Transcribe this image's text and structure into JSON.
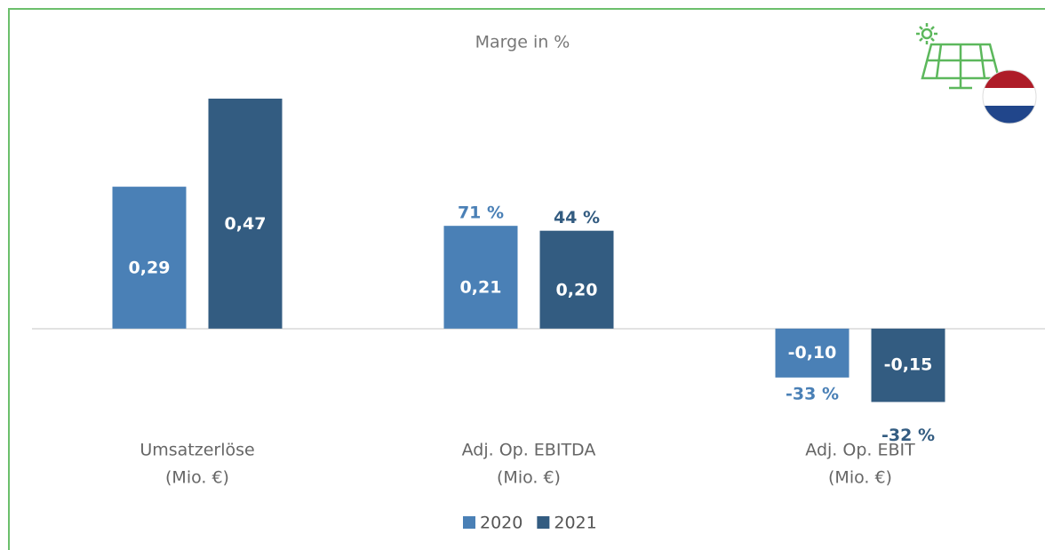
{
  "chart_data": {
    "type": "bar",
    "title": "Marge in %",
    "categories": [
      [
        "Umsatzerlöse",
        "(Mio. €)"
      ],
      [
        "Adj. Op. EBITDA",
        "(Mio. €)"
      ],
      [
        "Adj. Op. EBIT",
        "(Mio. €)"
      ]
    ],
    "series": [
      {
        "name": "2020",
        "color": "#4a80b6",
        "values": [
          0.29,
          0.21,
          -0.1
        ],
        "value_labels": [
          "0,29",
          "0,21",
          "-0,10"
        ],
        "margin_labels": [
          null,
          "71 %",
          "-33 %"
        ]
      },
      {
        "name": "2021",
        "color": "#335c81",
        "values": [
          0.47,
          0.2,
          -0.15
        ],
        "value_labels": [
          "0,47",
          "0,20",
          "-0,15"
        ],
        "margin_labels": [
          null,
          "44 %",
          "-32 %"
        ]
      }
    ],
    "ylim": [
      -0.3,
      0.5
    ],
    "legend": "bottom"
  }
}
